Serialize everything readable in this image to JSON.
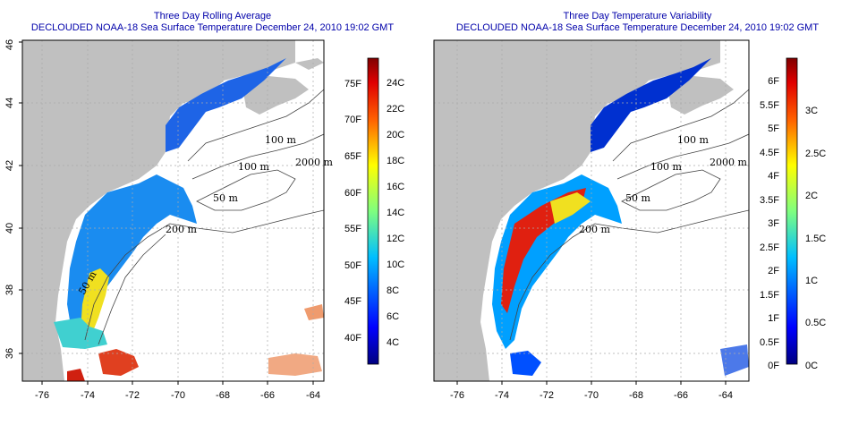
{
  "panels": [
    {
      "id": "left",
      "title_line1": "Three Day Rolling Average",
      "title_line2": "DECLOUDED NOAA-18 Sea Surface Temperature December 24, 2010 19:02 GMT",
      "colorbar": {
        "f_labels": [
          "75F",
          "70F",
          "65F",
          "60F",
          "55F",
          "50F",
          "45F",
          "40F"
        ],
        "c_labels": [
          "24C",
          "22C",
          "20C",
          "18C",
          "16C",
          "14C",
          "12C",
          "10C",
          "8C",
          "6C",
          "4C"
        ]
      }
    },
    {
      "id": "right",
      "title_line1": "Three Day Temperature Variability",
      "title_line2": "DECLOUDED NOAA-18 Sea Surface Temperature December 24, 2010 19:02 GMT",
      "colorbar": {
        "f_labels": [
          "6F",
          "5.5F",
          "5F",
          "4.5F",
          "4F",
          "3.5F",
          "3F",
          "2.5F",
          "2F",
          "1.5F",
          "1F",
          "0.5F",
          "0F"
        ],
        "c_labels": [
          "3C",
          "2.5C",
          "2C",
          "1.5C",
          "1C",
          "0.5C",
          "0C"
        ]
      }
    }
  ],
  "axes": {
    "x_labels": [
      "-76",
      "-74",
      "-72",
      "-70",
      "-68",
      "-66",
      "-64"
    ],
    "y_labels": [
      "36",
      "38",
      "40",
      "42",
      "44",
      "46"
    ]
  },
  "contour_labels": [
    "100 m",
    "2000 m",
    "100 m",
    "50 m",
    "200 m",
    "50 m"
  ],
  "colors": {
    "land": "#c0c0c0",
    "title": "#0000aa",
    "grid": "#aaaaaa"
  }
}
